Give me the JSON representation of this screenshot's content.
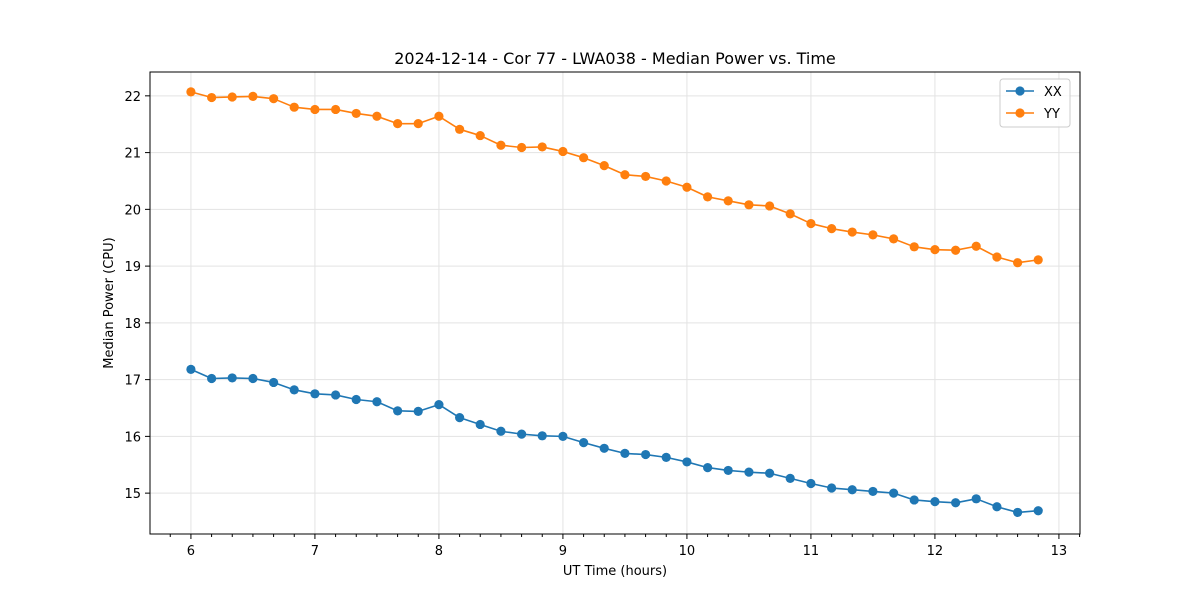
{
  "chart_data": {
    "type": "line",
    "title": "2024-12-14 - Cor 77 - LWA038 - Median Power vs. Time",
    "xlabel": "UT Time (hours)",
    "ylabel": "Median Power (CPU)",
    "xlim": [
      5.67,
      13.17
    ],
    "ylim": [
      14.28,
      22.42
    ],
    "xticks": [
      6,
      7,
      8,
      9,
      10,
      11,
      12,
      13
    ],
    "yticks": [
      15,
      16,
      17,
      18,
      19,
      20,
      21,
      22
    ],
    "grid": true,
    "legend_position": "top-right",
    "x": [
      6.0,
      6.167,
      6.333,
      6.5,
      6.667,
      6.833,
      7.0,
      7.167,
      7.333,
      7.5,
      7.667,
      7.833,
      8.0,
      8.167,
      8.333,
      8.5,
      8.667,
      8.833,
      9.0,
      9.167,
      9.333,
      9.5,
      9.667,
      9.833,
      10.0,
      10.167,
      10.333,
      10.5,
      10.667,
      10.833,
      11.0,
      11.167,
      11.333,
      11.5,
      11.667,
      11.833,
      12.0,
      12.167,
      12.333,
      12.5,
      12.667,
      12.833
    ],
    "series": [
      {
        "name": "XX",
        "color": "#1f77b4",
        "values": [
          17.18,
          17.02,
          17.03,
          17.02,
          16.95,
          16.82,
          16.75,
          16.73,
          16.65,
          16.61,
          16.45,
          16.44,
          16.56,
          16.33,
          16.21,
          16.09,
          16.04,
          16.01,
          16.0,
          15.89,
          15.79,
          15.7,
          15.68,
          15.63,
          15.55,
          15.45,
          15.4,
          15.37,
          15.35,
          15.26,
          15.17,
          15.09,
          15.06,
          15.03,
          15.0,
          14.88,
          14.85,
          14.83,
          14.9,
          14.76,
          14.66,
          14.69
        ]
      },
      {
        "name": "YY",
        "color": "#ff7f0e",
        "values": [
          22.07,
          21.97,
          21.98,
          21.99,
          21.95,
          21.8,
          21.76,
          21.76,
          21.69,
          21.64,
          21.51,
          21.51,
          21.64,
          21.41,
          21.3,
          21.13,
          21.09,
          21.1,
          21.02,
          20.91,
          20.77,
          20.61,
          20.58,
          20.5,
          20.39,
          20.22,
          20.15,
          20.08,
          20.06,
          19.92,
          19.75,
          19.66,
          19.6,
          19.55,
          19.48,
          19.34,
          19.29,
          19.28,
          19.35,
          19.16,
          19.06,
          19.11
        ]
      }
    ]
  }
}
